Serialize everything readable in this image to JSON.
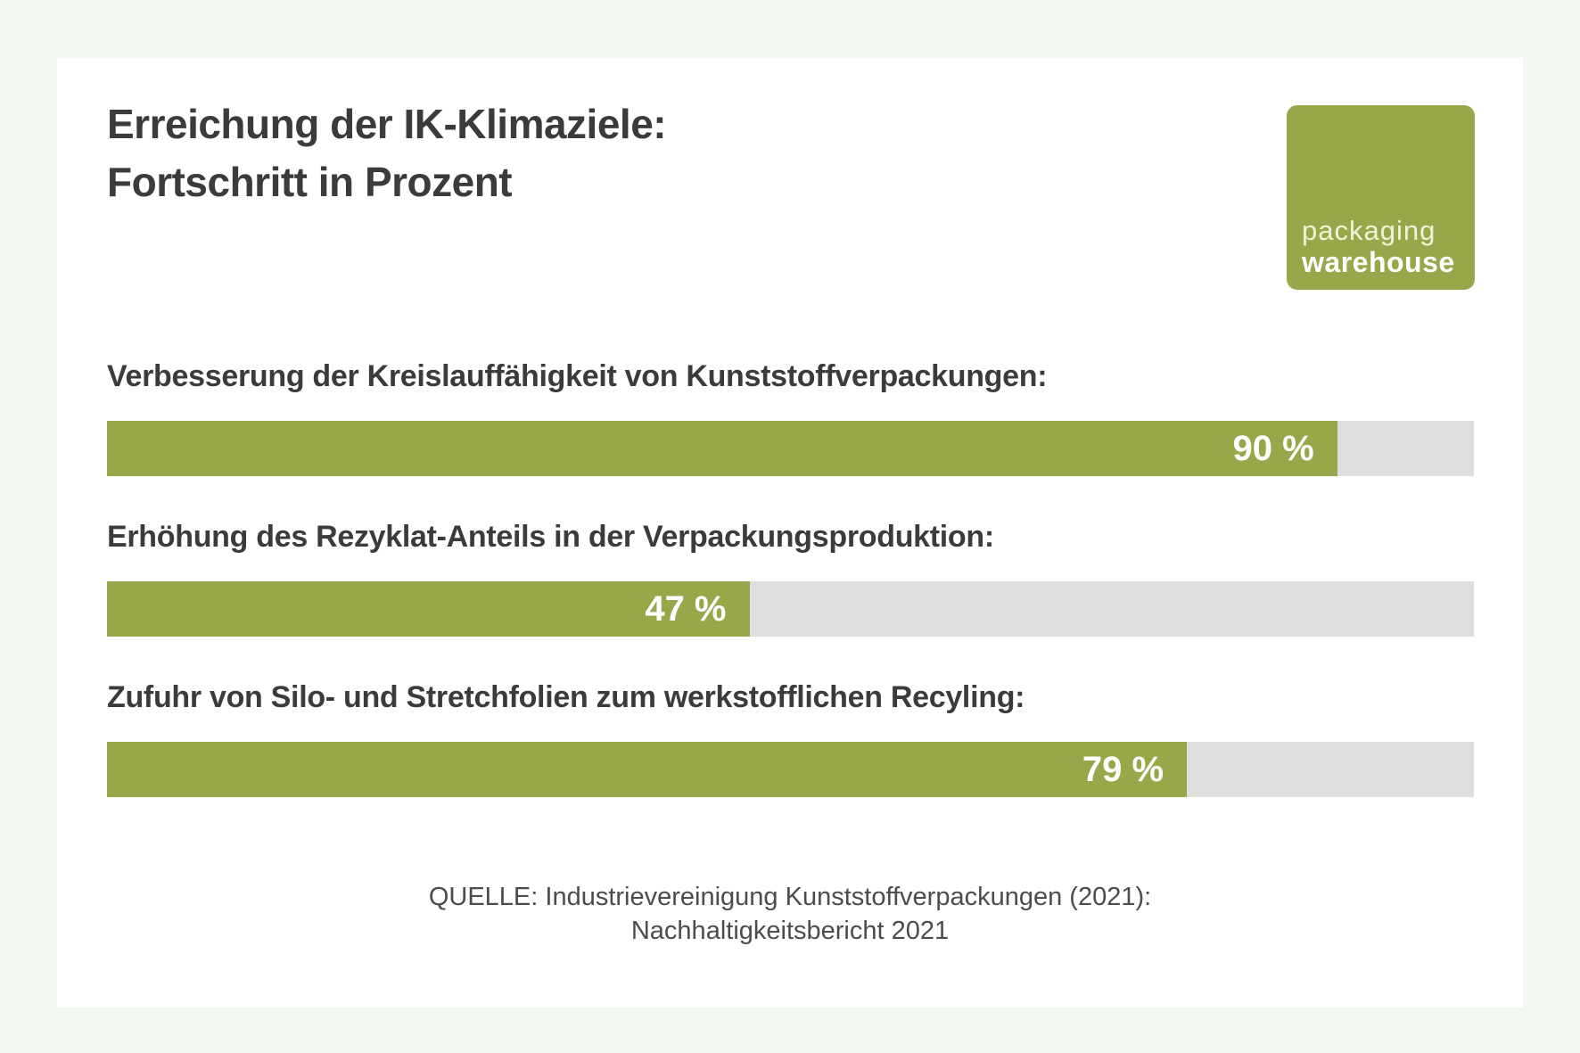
{
  "header": {
    "title_line1": "Erreichung der IK-Klimaziele:",
    "title_line2": "Fortschritt in Prozent"
  },
  "logo": {
    "line1": "packaging",
    "line2": "warehouse"
  },
  "source": {
    "line1": "QUELLE: Industrievereinigung Kunststoffverpackungen (2021):",
    "line2": "Nachhaltigkeitsbericht 2021"
  },
  "colors": {
    "accent_green": "#96a84a",
    "track_gray": "#dedede",
    "page_background": "#f3f9f0",
    "card_background": "#ffffff",
    "text_dark": "#3b3b3b",
    "text_source": "#4c4c4c"
  },
  "chart_data": {
    "type": "bar",
    "orientation": "horizontal",
    "title": "Erreichung der IK-Klimaziele: Fortschritt in Prozent",
    "unit": "%",
    "xlim": [
      0,
      100
    ],
    "grid": false,
    "legend": false,
    "categories": [
      "Verbesserung der Kreislauffähigkeit von Kunststoffverpackungen:",
      "Erhöhung des Rezyklat-Anteils in der Verpackungsproduktion:",
      "Zufuhr von Silo- und Stretchfolien zum werkstofflichen Recyling:"
    ],
    "values": [
      90,
      47,
      79
    ],
    "value_labels": [
      "90 %",
      "47 %",
      "79 %"
    ]
  }
}
